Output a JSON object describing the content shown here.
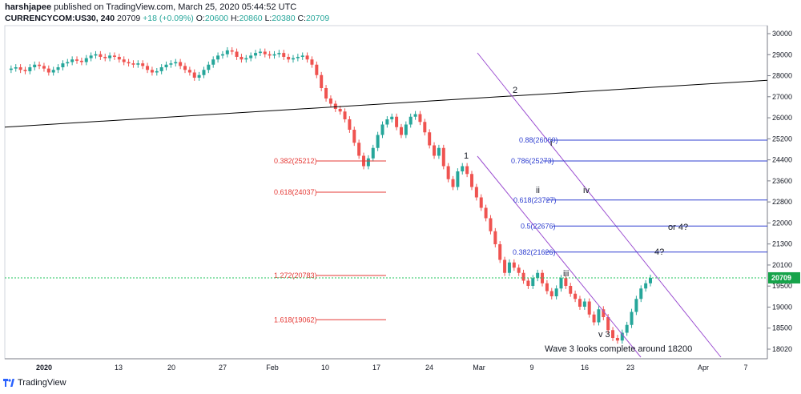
{
  "header": {
    "publisher": "harshjapee",
    "published_text": "published on TradingView.com, March 25, 2020 05:44:52 UTC",
    "symbol": "CURRENCYCOM:US30, 240",
    "last": "20709",
    "change": "+18 (+0.09%)",
    "open_label": "O:",
    "open": "20600",
    "high_label": "H:",
    "high": "20860",
    "low_label": "L:",
    "low": "20380",
    "close_label": "C:",
    "close": "20709"
  },
  "footer": {
    "brand": "TradingView"
  },
  "colors": {
    "up": "#26a69a",
    "down": "#ef5350",
    "fib_blue": "#2f3fd0",
    "fib_red": "#e53935",
    "channel": "#9c4fd1",
    "price_line": "#22c55e"
  },
  "chart_data": {
    "type": "candlestick",
    "ylim": [
      17600,
      30400
    ],
    "y_ticks": [
      "30000",
      "29100",
      "28200",
      "27300",
      "26500",
      "25600",
      "24800",
      "24000",
      "23100",
      "22300",
      "21400",
      "20600",
      "19700",
      "18900",
      "18000"
    ],
    "y_ticks_shown": [
      "30000",
      "29000",
      "28000",
      "27000",
      "26000",
      "25200",
      "24400",
      "23600",
      "22800",
      "22000",
      "21300",
      "20100",
      "19500",
      "19000",
      "18500",
      "18020"
    ],
    "x_ticks": [
      "2020",
      "13",
      "20",
      "27",
      "Feb",
      "10",
      "17",
      "24",
      "Mar",
      "9",
      "16",
      "23",
      "Apr",
      "7"
    ],
    "last_price_label": "20709",
    "trendline": {
      "start": 26500,
      "end": 28300
    },
    "fib_blue_levels": [
      {
        "label": "0.88(26060)",
        "value": 26000
      },
      {
        "label": "0.786(25273)",
        "value": 25200
      },
      {
        "label": "0.618(23727)",
        "value": 23700
      },
      {
        "label": "0.5(22676)",
        "value": 22700
      },
      {
        "label": "0.382(21626)",
        "value": 21700
      }
    ],
    "fib_red_levels": [
      {
        "label": "0.382(25212)",
        "value": 25200
      },
      {
        "label": "0.618(24037)",
        "value": 24000
      },
      {
        "label": "1.272(20783)",
        "value": 20800
      },
      {
        "label": "1.618(19062)",
        "value": 19100
      }
    ],
    "annotations": [
      "1",
      "2",
      "i",
      "ii",
      "iii",
      "iv",
      "v 3",
      "4?",
      "or 4?",
      "Wave 3 looks complete around 18200"
    ],
    "price_path": [
      28700,
      28750,
      28800,
      28700,
      28650,
      28800,
      28900,
      28850,
      28750,
      28600,
      28700,
      28800,
      28950,
      29000,
      29100,
      29050,
      29000,
      29150,
      29250,
      29300,
      29200,
      29150,
      29250,
      29200,
      29100,
      29000,
      28950,
      28900,
      28950,
      28850,
      28700,
      28600,
      28650,
      28800,
      28900,
      28950,
      29000,
      28850,
      28700,
      28600,
      28400,
      28500,
      28700,
      28900,
      29100,
      29250,
      29300,
      29450,
      29400,
      29200,
      29100,
      29150,
      29250,
      29350,
      29400,
      29300,
      29250,
      29300,
      29350,
      29200,
      29100,
      29150,
      29200,
      29250,
      29100,
      28900,
      28500,
      28000,
      27600,
      27400,
      27200,
      27100,
      26800,
      26400,
      25900,
      25400,
      25000,
      25300,
      25700,
      26200,
      26600,
      26800,
      26900,
      26500,
      26200,
      26600,
      26900,
      27000,
      26700,
      26300,
      25800,
      25400,
      25700,
      25000,
      24500,
      24200,
      24800,
      25000,
      24700,
      24200,
      23800,
      23400,
      23000,
      22500,
      22000,
      21400,
      20900,
      21300,
      21100,
      20900,
      20600,
      20400,
      20700,
      20900,
      20500,
      20200,
      20000,
      20300,
      20700,
      20400,
      20100,
      19900,
      19600,
      19800,
      19300,
      19000,
      19500,
      19200,
      18700,
      18400,
      18300,
      18600,
      18900,
      19400,
      19900,
      20300,
      20500,
      20709
    ]
  }
}
